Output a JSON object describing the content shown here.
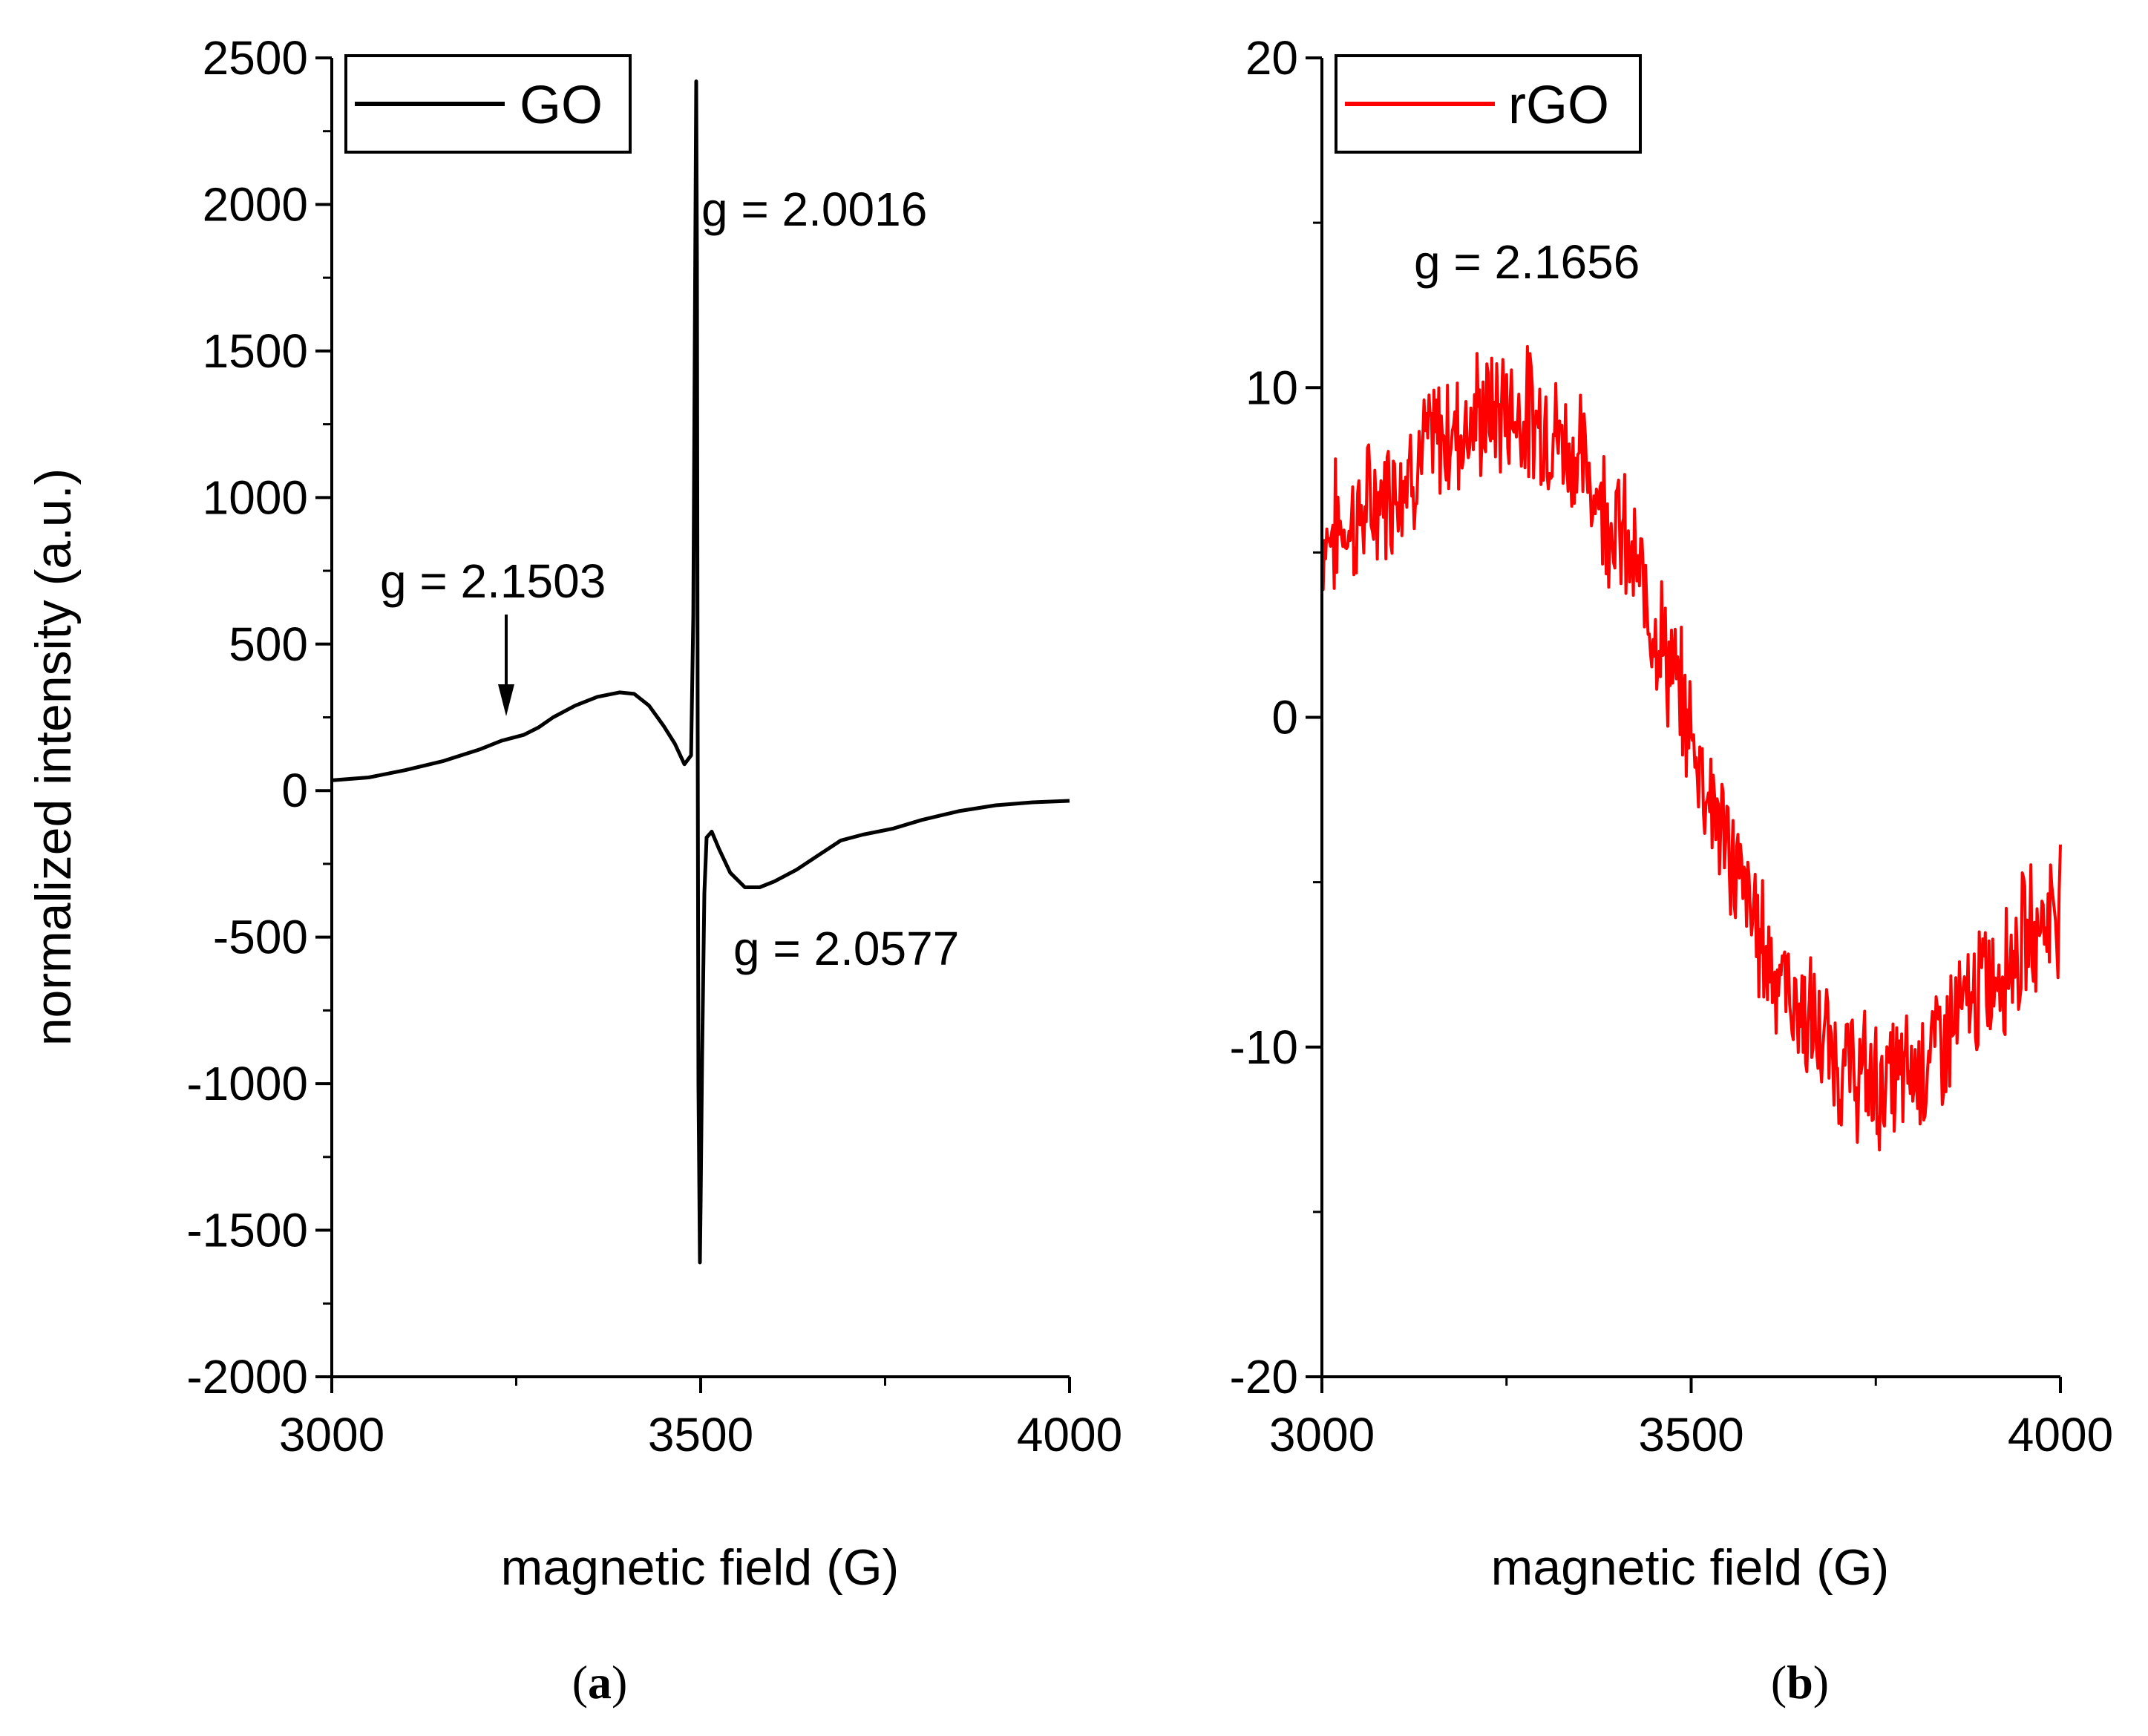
{
  "chart_data": [
    {
      "id": "a",
      "type": "line",
      "panel_label_open": "(",
      "panel_label_letter": "a",
      "panel_label_close": ")",
      "xlabel": "magnetic field (G)",
      "ylabel": "normalized intensity (a.u.)",
      "xlim": [
        3000,
        4000
      ],
      "ylim": [
        -2000,
        2500
      ],
      "xticks": [
        3000,
        3500,
        4000
      ],
      "yticks": [
        -2000,
        -1500,
        -1000,
        -500,
        0,
        500,
        1000,
        1500,
        2000,
        2500
      ],
      "legend": {
        "label": "GO",
        "placement": "top-left"
      },
      "series": [
        {
          "name": "GO",
          "color": "#000000",
          "x": [
            3000,
            3050,
            3100,
            3150,
            3200,
            3230,
            3260,
            3280,
            3300,
            3330,
            3360,
            3390,
            3410,
            3430,
            3450,
            3465,
            3478,
            3487,
            3490,
            3492,
            3494,
            3495,
            3496,
            3497,
            3499,
            3500,
            3502,
            3505,
            3508,
            3515,
            3525,
            3540,
            3560,
            3580,
            3600,
            3630,
            3660,
            3690,
            3720,
            3760,
            3800,
            3850,
            3900,
            3950,
            4000
          ],
          "y": [
            35,
            45,
            70,
            100,
            140,
            170,
            190,
            215,
            250,
            290,
            320,
            335,
            330,
            290,
            220,
            160,
            90,
            120,
            600,
            1500,
            2420,
            1800,
            200,
            -1000,
            -1610,
            -1400,
            -900,
            -350,
            -160,
            -140,
            -200,
            -280,
            -330,
            -330,
            -310,
            -270,
            -220,
            -170,
            -150,
            -130,
            -100,
            -70,
            -50,
            -40,
            -35
          ]
        }
      ],
      "annotations": [
        {
          "text": "g = 2.0016",
          "x": 3500,
          "y": 2000
        },
        {
          "text": "g = 2.1503",
          "x": 3240,
          "y": 700,
          "arrow_to": [
            3240,
            230
          ]
        },
        {
          "text": "g = 2.0577",
          "x": 3540,
          "y": -530
        }
      ]
    },
    {
      "id": "b",
      "type": "line",
      "panel_label_open": "(",
      "panel_label_letter": "b",
      "panel_label_close": ")",
      "xlabel": "magnetic field (G)",
      "ylabel": "",
      "xlim": [
        3000,
        4000
      ],
      "ylim": [
        -20,
        20
      ],
      "xticks": [
        3000,
        3500,
        4000
      ],
      "yticks": [
        -20,
        -10,
        0,
        10,
        20
      ],
      "legend": {
        "label": "rGO",
        "placement": "top-left"
      },
      "series": [
        {
          "name": "rGO",
          "color": "#ff0000",
          "noisy": true,
          "x": [
            3000,
            3050,
            3100,
            3150,
            3200,
            3250,
            3300,
            3350,
            3400,
            3450,
            3500,
            3550,
            3600,
            3650,
            3700,
            3750,
            3800,
            3850,
            3900,
            3950,
            4000
          ],
          "y": [
            5.5,
            6.0,
            7.2,
            8.3,
            9.0,
            9.4,
            9.0,
            7.8,
            5.8,
            3.0,
            -0.5,
            -4.0,
            -7.0,
            -9.0,
            -10.5,
            -11.2,
            -10.8,
            -9.5,
            -8.0,
            -6.8,
            -5.5
          ]
        }
      ],
      "annotations": [
        {
          "text": "g = 2.1656",
          "x": 3260,
          "y": 13.5
        }
      ]
    }
  ]
}
